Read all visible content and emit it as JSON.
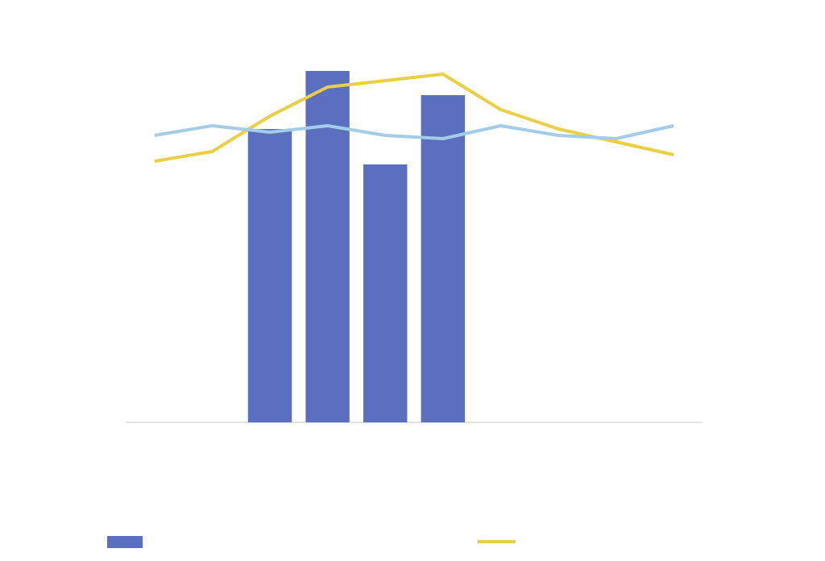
{
  "chart_data": {
    "type": "combo",
    "categories": [
      null,
      null,
      null,
      null,
      null,
      null,
      null,
      null,
      null,
      null
    ],
    "ylim": [
      0,
      120
    ],
    "series": [
      {
        "type": "bar",
        "color": "#5b6fc1",
        "legend": true,
        "values": [
          null,
          null,
          91,
          109,
          80,
          101.5,
          null,
          null,
          null,
          null
        ]
      },
      {
        "type": "line",
        "color": "#e8cf45",
        "legend": true,
        "values": [
          81,
          84,
          95,
          104,
          106,
          108,
          97,
          91,
          87,
          83
        ]
      },
      {
        "type": "line",
        "color": "#a3cde6",
        "legend": false,
        "values": [
          89,
          92,
          90,
          92,
          89,
          88,
          92,
          89,
          88,
          92
        ]
      }
    ]
  }
}
